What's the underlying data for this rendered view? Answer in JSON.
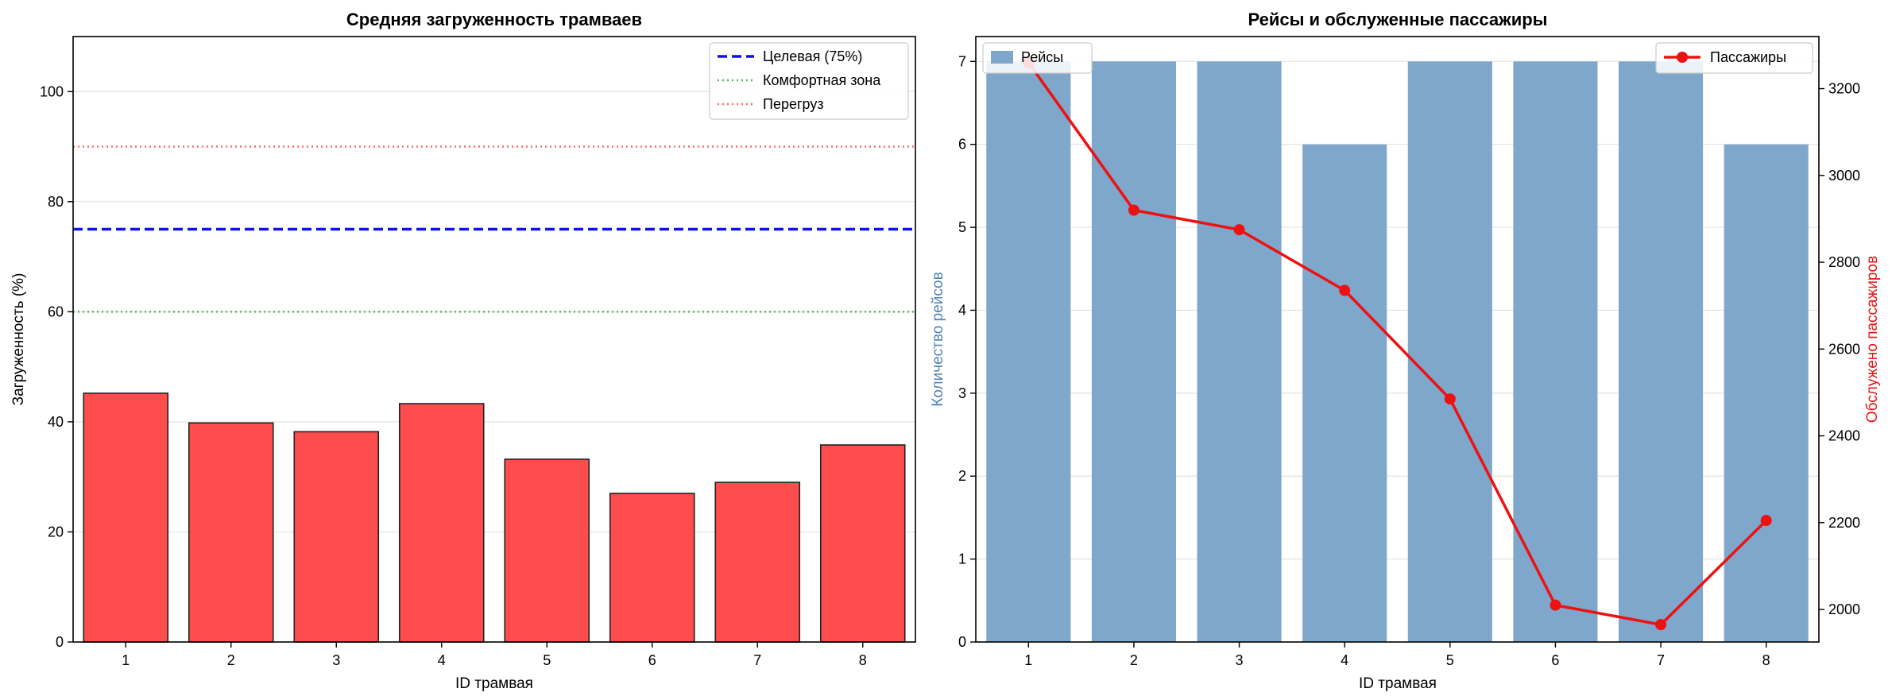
{
  "colors": {
    "bar_left": "#ff4c4c",
    "bar_left_edge": "#222222",
    "bar_right": "#7ea7cb",
    "line_right": "#ee1111",
    "target": "#1010ee",
    "comfort": "#55bb55",
    "overload": "#ff6a6a",
    "ylabel_left_right_chart": "#4f83b5",
    "ylabel_right_right_chart": "#ee1111"
  },
  "chart_data": [
    {
      "type": "bar",
      "title": "Средняя загруженность трамваев",
      "xlabel": "ID трамвая",
      "ylabel": "Загруженность (%)",
      "categories": [
        "1",
        "2",
        "3",
        "4",
        "5",
        "6",
        "7",
        "8"
      ],
      "values": [
        45.2,
        39.8,
        38.2,
        43.3,
        33.2,
        27.0,
        29.0,
        35.8
      ],
      "ylim": [
        0,
        110
      ],
      "yticks": [
        0,
        20,
        40,
        60,
        80,
        100
      ],
      "grid": "y",
      "legend_position": "top-right",
      "reference_lines": [
        {
          "name": "Целевая (75%)",
          "y": 75,
          "style": "dashed",
          "in_legend": true
        },
        {
          "name": "Комфортная зона",
          "y": 60,
          "style": "dotted",
          "in_legend": true
        },
        {
          "name": "Перегруз",
          "y": 90,
          "style": "dotted",
          "in_legend": true
        }
      ]
    },
    {
      "type": "bar+line",
      "title": "Рейсы и обслуженные пассажиры",
      "xlabel": "ID трамвая",
      "ylabel_left": "Количество рейсов",
      "ylabel_right": "Обслужено пассажиров",
      "categories": [
        "1",
        "2",
        "3",
        "4",
        "5",
        "6",
        "7",
        "8"
      ],
      "ylim_left": [
        0,
        7.3
      ],
      "yticks_left": [
        0,
        1,
        2,
        3,
        4,
        5,
        6,
        7
      ],
      "ylim_right": [
        1925,
        3320
      ],
      "yticks_right": [
        2000,
        2200,
        2400,
        2600,
        2800,
        3000,
        3200
      ],
      "grid": "y",
      "series": [
        {
          "name": "Рейсы",
          "kind": "bar",
          "axis": "left",
          "values": [
            7,
            7,
            7,
            6,
            7,
            7,
            7,
            6
          ],
          "legend_position": "top-left"
        },
        {
          "name": "Пассажиры",
          "kind": "line",
          "axis": "right",
          "values": [
            3260,
            2920,
            2875,
            2735,
            2485,
            2010,
            1965,
            2205
          ],
          "legend_position": "top-right"
        }
      ]
    }
  ]
}
